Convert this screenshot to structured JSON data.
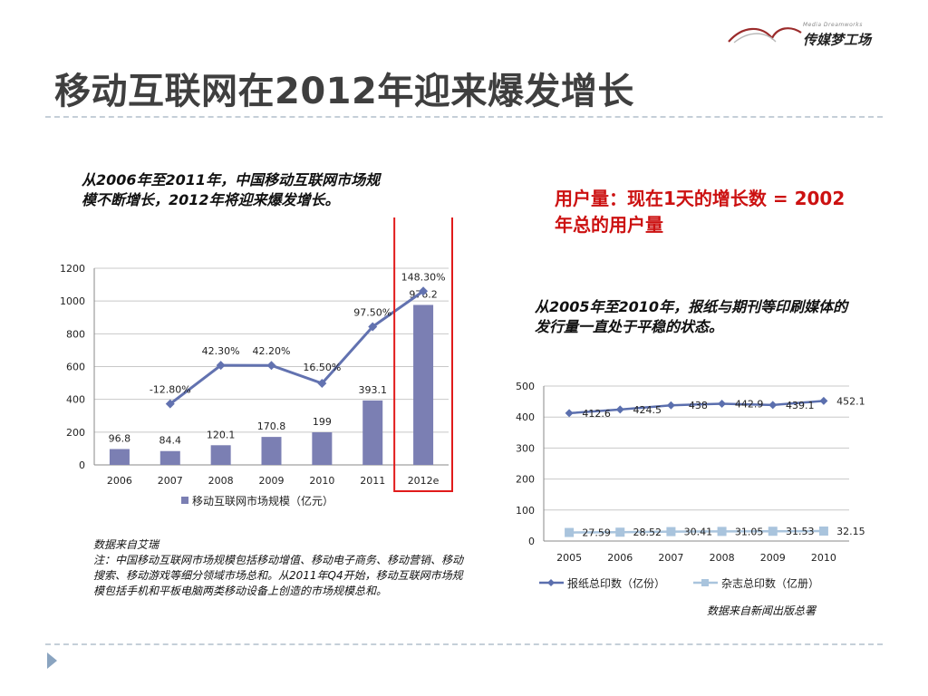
{
  "logo": {
    "sub": "Media Dreamworks",
    "name": "传媒梦工场"
  },
  "title": "移动互联网在2012年迎来爆发增长",
  "note_left": "从2006年至2011年，中国移动互联网市场规模不断增长，2012年将迎来爆发增长。",
  "highlight": "用户量：现在1天的增长数 = 2002年总的用户量",
  "note_right": "从2005年至2010年，报纸与期刊等印刷媒体的发行量一直处于平稳的状态。",
  "source_left": {
    "line1": "数据来自艾瑞",
    "line2": "注：中国移动互联网市场规模包括移动增值、移动电子商务、移动营销、移动搜索、移动游戏等细分领域市场总和。从2011年Q4开始，移动互联网市场规模包括手机和平板电脑两类移动设备上创造的市场规模总和。"
  },
  "source_right": "数据来自新闻出版总署",
  "colors": {
    "bar": "#7b7fb3",
    "line": "#6272b0",
    "highlight_box": "#e11b1b",
    "paper": "#5b6fae",
    "magazine": "#a9c4dd"
  },
  "chart_data": [
    {
      "type": "bar+line",
      "categories": [
        "2006",
        "2007",
        "2008",
        "2009",
        "2010",
        "2011",
        "2012e"
      ],
      "series": [
        {
          "name": "移动互联网市场规模（亿元）",
          "type": "bar",
          "values": [
            96.8,
            84.4,
            120.1,
            170.8,
            199,
            393.1,
            976.2
          ]
        },
        {
          "type": "line",
          "values": [
            null,
            -12.8,
            42.3,
            42.2,
            16.5,
            97.5,
            148.3
          ],
          "labels": [
            "",
            "-12.80%",
            "42.30%",
            "42.20%",
            "16.50%",
            "97.50%",
            "148.30%"
          ]
        }
      ],
      "bar_labels": [
        "96.8",
        "84.4",
        "120.1",
        "170.8",
        "199",
        "393.1",
        "976.2"
      ],
      "ylim": [
        0,
        1200
      ],
      "yticks": [
        "0",
        "200",
        "400",
        "600",
        "800",
        "1000",
        "1200"
      ],
      "grid": true,
      "legend_position": "bottom",
      "highlighted_category": "2012e"
    },
    {
      "type": "line",
      "categories": [
        "2005",
        "2006",
        "2007",
        "2008",
        "2009",
        "2010"
      ],
      "series": [
        {
          "name": "报纸总印数（亿份）",
          "values": [
            412.6,
            424.5,
            438,
            442.9,
            439.1,
            452.1
          ],
          "labels": [
            "412.6",
            "424.5",
            "438",
            "442.9",
            "439.1",
            "452.1"
          ],
          "marker": "diamond"
        },
        {
          "name": "杂志总印数（亿册）",
          "values": [
            27.59,
            28.52,
            30.41,
            31.05,
            31.53,
            32.15
          ],
          "labels": [
            "27.59",
            "28.52",
            "30.41",
            "31.05",
            "31.53",
            "32.15"
          ],
          "marker": "square"
        }
      ],
      "ylim": [
        0,
        500
      ],
      "yticks": [
        "0",
        "100",
        "200",
        "300",
        "400",
        "500"
      ],
      "grid": true,
      "legend_position": "bottom"
    }
  ]
}
